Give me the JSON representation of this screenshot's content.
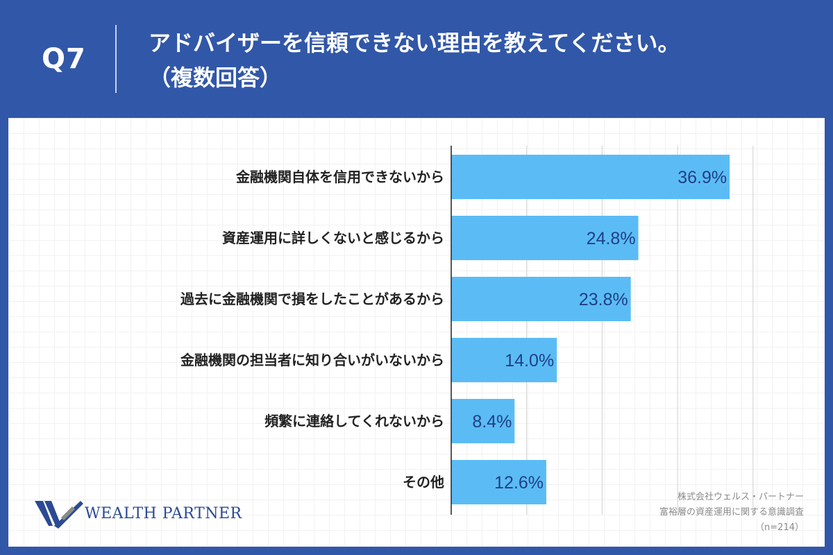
{
  "header": {
    "question": "Q7",
    "title": "アドバイザーを信頼できない理由を教えてください。",
    "subtitle": "（複数回答）"
  },
  "chart_data": {
    "type": "bar",
    "orientation": "horizontal",
    "categories": [
      "金融機関自体を信用できないから",
      "資産運用に詳しくないと感じるから",
      "過去に金融機関で損をしたことがあるから",
      "金融機関の担当者に知り合いがいないから",
      "頻繁に連絡してくれないから",
      "その他"
    ],
    "values": [
      36.9,
      24.8,
      23.8,
      14.0,
      8.4,
      12.6
    ],
    "value_labels": [
      "36.9%",
      "24.8%",
      "23.8%",
      "14.0%",
      "8.4%",
      "12.6%"
    ],
    "xlim": [
      0,
      40
    ],
    "grid": true,
    "bar_color": "#5bbcf5",
    "label_color": "#1f3f86"
  },
  "logo": {
    "text": "WEALTH PARTNER"
  },
  "source": {
    "line1": "株式会社ウェルス・パートナー",
    "line2": "富裕層の資産運用に関する意識調査",
    "line3": "（n=214）"
  }
}
